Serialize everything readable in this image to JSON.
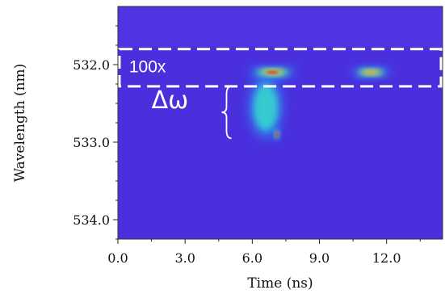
{
  "chart_data": {
    "type": "heatmap",
    "title": "",
    "xlabel": "Time (ns)",
    "ylabel": "Wavelength (nm)",
    "xlim": [
      0.0,
      14.5
    ],
    "ylim": [
      531.25,
      534.25
    ],
    "y_inverted": true,
    "x_ticks": [
      0.0,
      3.0,
      6.0,
      9.0,
      12.0
    ],
    "x_tick_labels": [
      "0.0",
      "3.0",
      "6.0",
      "9.0",
      "12.0"
    ],
    "y_ticks": [
      532.0,
      533.0,
      534.0
    ],
    "y_tick_labels": [
      "532.0",
      "533.0",
      "534.0"
    ],
    "colormap": "jet",
    "background_color": "#4a2fdc",
    "features": [
      {
        "name": "main-line-pulse-1",
        "t_center": 6.9,
        "t_width": 1.6,
        "wavelength": 532.1,
        "w_width": 0.05,
        "intensity": 1.0
      },
      {
        "name": "main-line-pulse-2",
        "t_center": 11.3,
        "t_width": 1.3,
        "wavelength": 532.1,
        "w_width": 0.045,
        "intensity": 0.72
      },
      {
        "name": "broadened-tail",
        "t_center": 6.6,
        "t_width": 1.1,
        "wavelength": 532.55,
        "w_width": 0.3,
        "intensity": 0.4
      },
      {
        "name": "hot-spot",
        "t_center": 7.1,
        "t_width": 0.2,
        "wavelength": 532.9,
        "w_width": 0.05,
        "intensity": 0.95
      }
    ],
    "annotations": {
      "gain_region": {
        "label": "100x",
        "t_range": [
          0.0,
          14.5
        ],
        "wavelength_range": [
          531.8,
          532.28
        ]
      },
      "broadening": {
        "label": "Δω",
        "wavelength_range": [
          532.28,
          532.95
        ]
      }
    },
    "grid": false,
    "legend": "none"
  }
}
